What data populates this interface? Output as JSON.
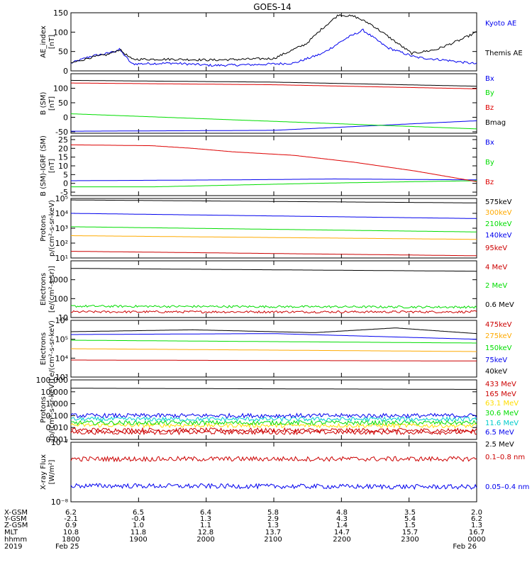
{
  "title": "GOES-14",
  "chart_data": [
    {
      "type": "line",
      "id": "ae",
      "ylabel": [
        "AE_index",
        "[nT]"
      ],
      "ylim": [
        0,
        150
      ],
      "scale": "linear",
      "ticks": [
        0,
        50,
        100,
        150
      ],
      "tick_labels": [
        "0",
        "50",
        "100",
        "150"
      ],
      "series": [
        {
          "name": "Kyoto AE",
          "color": "#0000ee",
          "shape": "kyoto_ae",
          "values": [
            [
              0,
              20
            ],
            [
              0.05,
              38
            ],
            [
              0.09,
              45
            ],
            [
              0.12,
              55
            ],
            [
              0.15,
              18
            ],
            [
              0.25,
              20
            ],
            [
              0.35,
              14
            ],
            [
              0.45,
              16
            ],
            [
              0.55,
              20
            ],
            [
              0.62,
              45
            ],
            [
              0.68,
              85
            ],
            [
              0.72,
              105
            ],
            [
              0.78,
              60
            ],
            [
              0.85,
              35
            ],
            [
              0.92,
              28
            ],
            [
              1.0,
              18
            ]
          ]
        },
        {
          "name": "Themis AE",
          "color": "#000000",
          "shape": "themis_ae",
          "values": [
            [
              0,
              20
            ],
            [
              0.05,
              35
            ],
            [
              0.09,
              42
            ],
            [
              0.12,
              55
            ],
            [
              0.15,
              30
            ],
            [
              0.25,
              30
            ],
            [
              0.35,
              28
            ],
            [
              0.5,
              32
            ],
            [
              0.58,
              70
            ],
            [
              0.62,
              110
            ],
            [
              0.66,
              145
            ],
            [
              0.7,
              140
            ],
            [
              0.74,
              120
            ],
            [
              0.78,
              90
            ],
            [
              0.84,
              45
            ],
            [
              0.9,
              55
            ],
            [
              0.96,
              80
            ],
            [
              1.0,
              100
            ]
          ]
        }
      ]
    },
    {
      "type": "line",
      "id": "bsm",
      "ylabel": [
        "B (SM)",
        "[nT]"
      ],
      "ylim": [
        -55,
        150
      ],
      "scale": "linear",
      "ticks": [
        -50,
        0,
        50,
        100
      ],
      "tick_labels": [
        "-50",
        "0",
        "50",
        "100"
      ],
      "series": [
        {
          "name": "Bx",
          "color": "#0000ee",
          "values": [
            [
              0,
              -48
            ],
            [
              0.5,
              -45
            ],
            [
              1.0,
              -12
            ]
          ]
        },
        {
          "name": "By",
          "color": "#00dd00",
          "values": [
            [
              0,
              12
            ],
            [
              0.5,
              -14
            ],
            [
              1.0,
              -40
            ]
          ]
        },
        {
          "name": "Bz",
          "color": "#dd0000",
          "values": [
            [
              0,
              118
            ],
            [
              0.5,
              112
            ],
            [
              1.0,
              98
            ]
          ]
        },
        {
          "name": "Bmag",
          "color": "#000000",
          "values": [
            [
              0,
              127
            ],
            [
              0.5,
              121
            ],
            [
              1.0,
              107
            ]
          ]
        }
      ]
    },
    {
      "type": "line",
      "id": "bigrf",
      "ylabel": [
        "B (SM)-IGRF (SM)",
        "[nT]"
      ],
      "ylim": [
        -7,
        27
      ],
      "scale": "linear",
      "ticks": [
        -5,
        0,
        5,
        10,
        15,
        20,
        25
      ],
      "tick_labels": [
        "-5",
        "0",
        "5",
        "10",
        "15",
        "20",
        "25"
      ],
      "series": [
        {
          "name": "Bx",
          "color": "#0000ee",
          "values": [
            [
              0,
              1.5
            ],
            [
              0.4,
              2
            ],
            [
              0.65,
              2.5
            ],
            [
              1.0,
              2
            ]
          ]
        },
        {
          "name": "By",
          "color": "#00dd00",
          "values": [
            [
              0,
              -2
            ],
            [
              0.2,
              -2
            ],
            [
              0.4,
              -1
            ],
            [
              0.6,
              0
            ],
            [
              0.8,
              0.8
            ],
            [
              1.0,
              1.5
            ]
          ]
        },
        {
          "name": "Bz",
          "color": "#dd0000",
          "values": [
            [
              0,
              22
            ],
            [
              0.2,
              21.5
            ],
            [
              0.3,
              20
            ],
            [
              0.4,
              18
            ],
            [
              0.55,
              16
            ],
            [
              0.7,
              12
            ],
            [
              0.85,
              7
            ],
            [
              1.0,
              1
            ]
          ]
        }
      ]
    },
    {
      "type": "line",
      "id": "mageds_protons",
      "ylabel": [
        "Protons",
        "p/(cm²-s-sr-keV)"
      ],
      "ylim": [
        1,
        5
      ],
      "scale": "log10",
      "ticks": [
        1,
        2,
        3,
        4,
        5
      ],
      "tick_labels": [
        "10¹",
        "10²",
        "10³",
        "10⁴",
        "10⁵"
      ],
      "series": [
        {
          "name": "575keV",
          "color": "#000000",
          "values": [
            [
              0,
              4.9
            ],
            [
              1.0,
              4.7
            ]
          ]
        },
        {
          "name": "300keV",
          "color": "#ffaa00",
          "values": [
            [
              0,
              2.5
            ],
            [
              1.0,
              2.25
            ]
          ]
        },
        {
          "name": "210keV",
          "color": "#00dd00",
          "values": [
            [
              0,
              3.1
            ],
            [
              1.0,
              2.75
            ]
          ]
        },
        {
          "name": "140keV",
          "color": "#0000ee",
          "values": [
            [
              0,
              4.0
            ],
            [
              1.0,
              3.65
            ]
          ]
        },
        {
          "name": "95keV",
          "color": "#cc0000",
          "values": [
            [
              0,
              1.45
            ],
            [
              1.0,
              1.15
            ]
          ]
        }
      ]
    },
    {
      "type": "line",
      "id": "epead_electrons",
      "ylabel": [
        "Electrons",
        "[e/(cm²-s-sr)]"
      ],
      "ylim": [
        1,
        4
      ],
      "scale": "log10",
      "ticks": [
        1,
        2,
        3
      ],
      "tick_labels": [
        "10",
        "100",
        "1000"
      ],
      "series": [
        {
          "name": "4 MeV",
          "color": "#cc0000",
          "values": [
            [
              0,
              1.3
            ],
            [
              1.0,
              1.3
            ]
          ]
        },
        {
          "name": "2 MeV",
          "color": "#00dd00",
          "values": [
            [
              0,
              1.6
            ],
            [
              1.0,
              1.55
            ]
          ]
        },
        {
          "name": "0.6 MeV",
          "color": "#000000",
          "values": [
            [
              0,
              3.6
            ],
            [
              1.0,
              3.45
            ]
          ]
        }
      ]
    },
    {
      "type": "line",
      "id": "magpd_electrons",
      "ylabel": [
        "Electrons",
        "e/(cm²-s-sr-keV)"
      ],
      "ylim": [
        3,
        6
      ],
      "scale": "log10",
      "ticks": [
        3,
        4,
        5,
        6
      ],
      "tick_labels": [
        "10³",
        "10⁴",
        "10⁵",
        "10⁶"
      ],
      "series": [
        {
          "name": "475keV",
          "color": "#cc0000",
          "values": [
            [
              0,
              3.9
            ],
            [
              1.0,
              3.85
            ]
          ]
        },
        {
          "name": "275keV",
          "color": "#ffaa00",
          "values": [
            [
              0,
              4.5
            ],
            [
              1.0,
              4.35
            ]
          ]
        },
        {
          "name": "150keV",
          "color": "#00dd00",
          "values": [
            [
              0,
              4.95
            ],
            [
              1.0,
              4.8
            ]
          ]
        },
        {
          "name": "75keV",
          "color": "#0000ee",
          "values": [
            [
              0,
              5.25
            ],
            [
              0.5,
              5.3
            ],
            [
              1.0,
              5.0
            ]
          ]
        },
        {
          "name": "40keV",
          "color": "#000000",
          "values": [
            [
              0,
              5.4
            ],
            [
              0.3,
              5.5
            ],
            [
              0.6,
              5.35
            ],
            [
              0.8,
              5.6
            ],
            [
              1.0,
              5.3
            ]
          ]
        }
      ]
    },
    {
      "type": "line",
      "id": "hepad_protons",
      "ylabel": [
        "Protons",
        "[p/(cm²-s-sr-keV)]"
      ],
      "ylim": [
        -3,
        2
      ],
      "scale": "log10",
      "ticks": [
        -3,
        -2,
        -1,
        0,
        1,
        2
      ],
      "tick_labels": [
        "0.001",
        "0.010",
        "0.100",
        "1.000",
        "10.000",
        "100.000"
      ],
      "series": [
        {
          "name": "433 MeV",
          "color": "#cc0000",
          "values": [
            [
              0,
              -2.2
            ],
            [
              1.0,
              -2.25
            ]
          ]
        },
        {
          "name": "165 MeV",
          "color": "#cc0000",
          "values": [
            [
              0,
              -2.4
            ],
            [
              1.0,
              -2.4
            ]
          ]
        },
        {
          "name": "63.1 MeV",
          "color": "#ffdd00",
          "values": [
            [
              0,
              -1.8
            ],
            [
              1.0,
              -1.85
            ]
          ]
        },
        {
          "name": "30.6 MeV",
          "color": "#00dd00",
          "values": [
            [
              0,
              -1.6
            ],
            [
              1.0,
              -1.6
            ]
          ]
        },
        {
          "name": "11.6 MeV",
          "color": "#00cccc",
          "values": [
            [
              0,
              -1.3
            ],
            [
              1.0,
              -1.3
            ]
          ]
        },
        {
          "name": "6.5 MeV",
          "color": "#0000ee",
          "values": [
            [
              0,
              -1.0
            ],
            [
              1.0,
              -1.0
            ]
          ]
        },
        {
          "name": "2.5 MeV",
          "color": "#000000",
          "values": [
            [
              0,
              1.3
            ],
            [
              1.0,
              1.2
            ]
          ]
        }
      ]
    },
    {
      "type": "line",
      "id": "xray",
      "ylabel": [
        "X-ray Flux",
        "[W/m²]"
      ],
      "ylim": [
        -8,
        -7
      ],
      "scale": "log10",
      "ticks": [
        -8,
        -7
      ],
      "tick_labels": [
        "10⁻⁸",
        "10⁻⁷"
      ],
      "series": [
        {
          "name": "0.1–0.8 nm",
          "color": "#cc0000",
          "values": [
            [
              0,
              -7.28
            ],
            [
              1.0,
              -7.28
            ]
          ]
        },
        {
          "name": "0.05–0.4 nm",
          "color": "#0000ee",
          "values": [
            [
              0,
              -7.73
            ],
            [
              1.0,
              -7.75
            ]
          ]
        }
      ]
    }
  ],
  "ephemeris": {
    "rows": [
      "X-GSM",
      "Y-GSM",
      "Z-GSM",
      "MLT",
      "hhmm",
      "2019"
    ],
    "columns": [
      [
        "6.2",
        "-2.1",
        "0.9",
        "10.8",
        "1800",
        "Feb 25"
      ],
      [
        "6.5",
        "-0.4",
        "1.0",
        "11.8",
        "1900",
        ""
      ],
      [
        "6.4",
        "1.3",
        "1.1",
        "12.8",
        "2000",
        ""
      ],
      [
        "5.8",
        "2.9",
        "1.3",
        "13.7",
        "2100",
        ""
      ],
      [
        "4.8",
        "4.3",
        "1.4",
        "14.7",
        "2200",
        ""
      ],
      [
        "3.5",
        "5.4",
        "1.5",
        "15.7",
        "2300",
        ""
      ],
      [
        "2.0",
        "6.2",
        "1.3",
        "16.7",
        "0000",
        "Feb 26"
      ]
    ]
  }
}
